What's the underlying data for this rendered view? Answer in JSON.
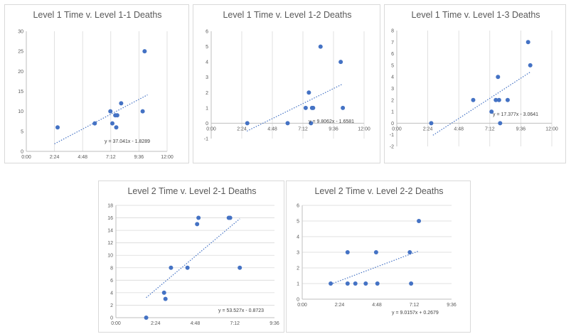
{
  "chart_data": [
    {
      "type": "scatter",
      "title": "Level 1 Time v. Level 1-1 Deaths",
      "xlabel": "",
      "ylabel": "",
      "x_ticks": [
        "0:00",
        "2:24",
        "4:48",
        "7:12",
        "9:36",
        "12:00"
      ],
      "xlim": [
        "0:00",
        "12:00"
      ],
      "y_ticks": [
        "0",
        "5",
        "10",
        "15",
        "20",
        "25",
        "30"
      ],
      "ylim": [
        0,
        30
      ],
      "grid": "vertical",
      "points": [
        {
          "x": "2:40",
          "y": 6
        },
        {
          "x": "5:50",
          "y": 7
        },
        {
          "x": "7:10",
          "y": 10
        },
        {
          "x": "7:20",
          "y": 7
        },
        {
          "x": "7:35",
          "y": 9
        },
        {
          "x": "7:45",
          "y": 9
        },
        {
          "x": "7:40",
          "y": 6
        },
        {
          "x": "8:05",
          "y": 12
        },
        {
          "x": "9:55",
          "y": 10
        },
        {
          "x": "10:05",
          "y": 25
        }
      ],
      "trendline": {
        "equation": "y = 37.041x - 1.8289",
        "slope": 37.041,
        "intercept": -1.8289,
        "x_range": [
          "2:24",
          "10:20"
        ]
      },
      "color": "#4472c4"
    },
    {
      "type": "scatter",
      "title": "Level 1 Time v. Level 1-2 Deaths",
      "xlabel": "",
      "ylabel": "",
      "x_ticks": [
        "0:00",
        "2:24",
        "4:48",
        "7:12",
        "9:36",
        "12:00"
      ],
      "xlim": [
        "0:00",
        "12:00"
      ],
      "y_ticks": [
        "-1",
        "0",
        "1",
        "2",
        "3",
        "4",
        "5",
        "6"
      ],
      "ylim": [
        -1,
        6
      ],
      "grid": "vertical",
      "points": [
        {
          "x": "2:50",
          "y": 0
        },
        {
          "x": "6:00",
          "y": 0
        },
        {
          "x": "7:25",
          "y": 1
        },
        {
          "x": "7:40",
          "y": 2
        },
        {
          "x": "7:55",
          "y": 1
        },
        {
          "x": "8:00",
          "y": 1
        },
        {
          "x": "7:50",
          "y": 0
        },
        {
          "x": "8:35",
          "y": 5
        },
        {
          "x": "10:10",
          "y": 4
        },
        {
          "x": "10:20",
          "y": 1
        }
      ],
      "trendline": {
        "equation": "y = 9.8062x - 1.6581",
        "slope": 9.8062,
        "intercept": -1.6581,
        "x_range": [
          "2:48",
          "10:20"
        ]
      },
      "color": "#4472c4"
    },
    {
      "type": "scatter",
      "title": "Level 1 Time v. Level 1-3 Deaths",
      "xlabel": "",
      "ylabel": "",
      "x_ticks": [
        "0:00",
        "2:24",
        "4:48",
        "7:12",
        "9:36",
        "12:00"
      ],
      "xlim": [
        "0:00",
        "12:00"
      ],
      "y_ticks": [
        "-2",
        "-1",
        "0",
        "1",
        "2",
        "3",
        "4",
        "5",
        "6",
        "7",
        "8"
      ],
      "ylim": [
        -2,
        8
      ],
      "grid": "vertical",
      "points": [
        {
          "x": "2:40",
          "y": 0
        },
        {
          "x": "5:55",
          "y": 2
        },
        {
          "x": "7:20",
          "y": 1
        },
        {
          "x": "7:40",
          "y": 2
        },
        {
          "x": "7:50",
          "y": 4
        },
        {
          "x": "7:55",
          "y": 2
        },
        {
          "x": "8:00",
          "y": 0
        },
        {
          "x": "8:35",
          "y": 2
        },
        {
          "x": "10:10",
          "y": 7
        },
        {
          "x": "10:20",
          "y": 5
        }
      ],
      "trendline": {
        "equation": "y = 17.377x - 3.0641",
        "slope": 17.377,
        "intercept": -3.0641,
        "x_range": [
          "2:48",
          "10:20"
        ]
      },
      "color": "#4472c4"
    },
    {
      "type": "scatter",
      "title": "Level 2 Time v. Level 2-1 Deaths",
      "xlabel": "",
      "ylabel": "",
      "x_ticks": [
        "0:00",
        "2:24",
        "4:48",
        "7:12",
        "9:36"
      ],
      "xlim": [
        "0:00",
        "9:36"
      ],
      "y_ticks": [
        "0",
        "2",
        "4",
        "6",
        "8",
        "10",
        "12",
        "14",
        "16",
        "18"
      ],
      "ylim": [
        0,
        18
      ],
      "grid": "horizontal",
      "points": [
        {
          "x": "1:50",
          "y": 0
        },
        {
          "x": "2:55",
          "y": 4
        },
        {
          "x": "3:00",
          "y": 3
        },
        {
          "x": "3:20",
          "y": 8
        },
        {
          "x": "4:20",
          "y": 8
        },
        {
          "x": "4:55",
          "y": 15
        },
        {
          "x": "5:00",
          "y": 16
        },
        {
          "x": "6:50",
          "y": 16
        },
        {
          "x": "6:55",
          "y": 16
        },
        {
          "x": "7:30",
          "y": 8
        }
      ],
      "trendline": {
        "equation": "y = 53.527x - 0.8723",
        "slope": 53.527,
        "intercept": -0.8723,
        "x_range": [
          "1:50",
          "7:30"
        ]
      },
      "color": "#4472c4"
    },
    {
      "type": "scatter",
      "title": "Level 2 Time v. Level 2-2 Deaths",
      "xlabel": "",
      "ylabel": "",
      "x_ticks": [
        "0:00",
        "2:24",
        "4:48",
        "7:12",
        "9:36"
      ],
      "xlim": [
        "0:00",
        "9:36"
      ],
      "y_ticks": [
        "0",
        "1",
        "2",
        "3",
        "4",
        "5",
        "6"
      ],
      "ylim": [
        0,
        6
      ],
      "grid": "horizontal",
      "points": [
        {
          "x": "1:50",
          "y": 1
        },
        {
          "x": "2:55",
          "y": 3
        },
        {
          "x": "2:55",
          "y": 1
        },
        {
          "x": "3:25",
          "y": 1
        },
        {
          "x": "4:05",
          "y": 1
        },
        {
          "x": "4:45",
          "y": 3
        },
        {
          "x": "4:50",
          "y": 1
        },
        {
          "x": "6:55",
          "y": 3
        },
        {
          "x": "7:00",
          "y": 1
        },
        {
          "x": "7:30",
          "y": 5
        }
      ],
      "trendline": {
        "equation": "y = 9.0157x + 0.2679",
        "slope": 9.0157,
        "intercept": 0.2679,
        "x_range": [
          "1:50",
          "7:30"
        ]
      },
      "color": "#4472c4"
    }
  ]
}
